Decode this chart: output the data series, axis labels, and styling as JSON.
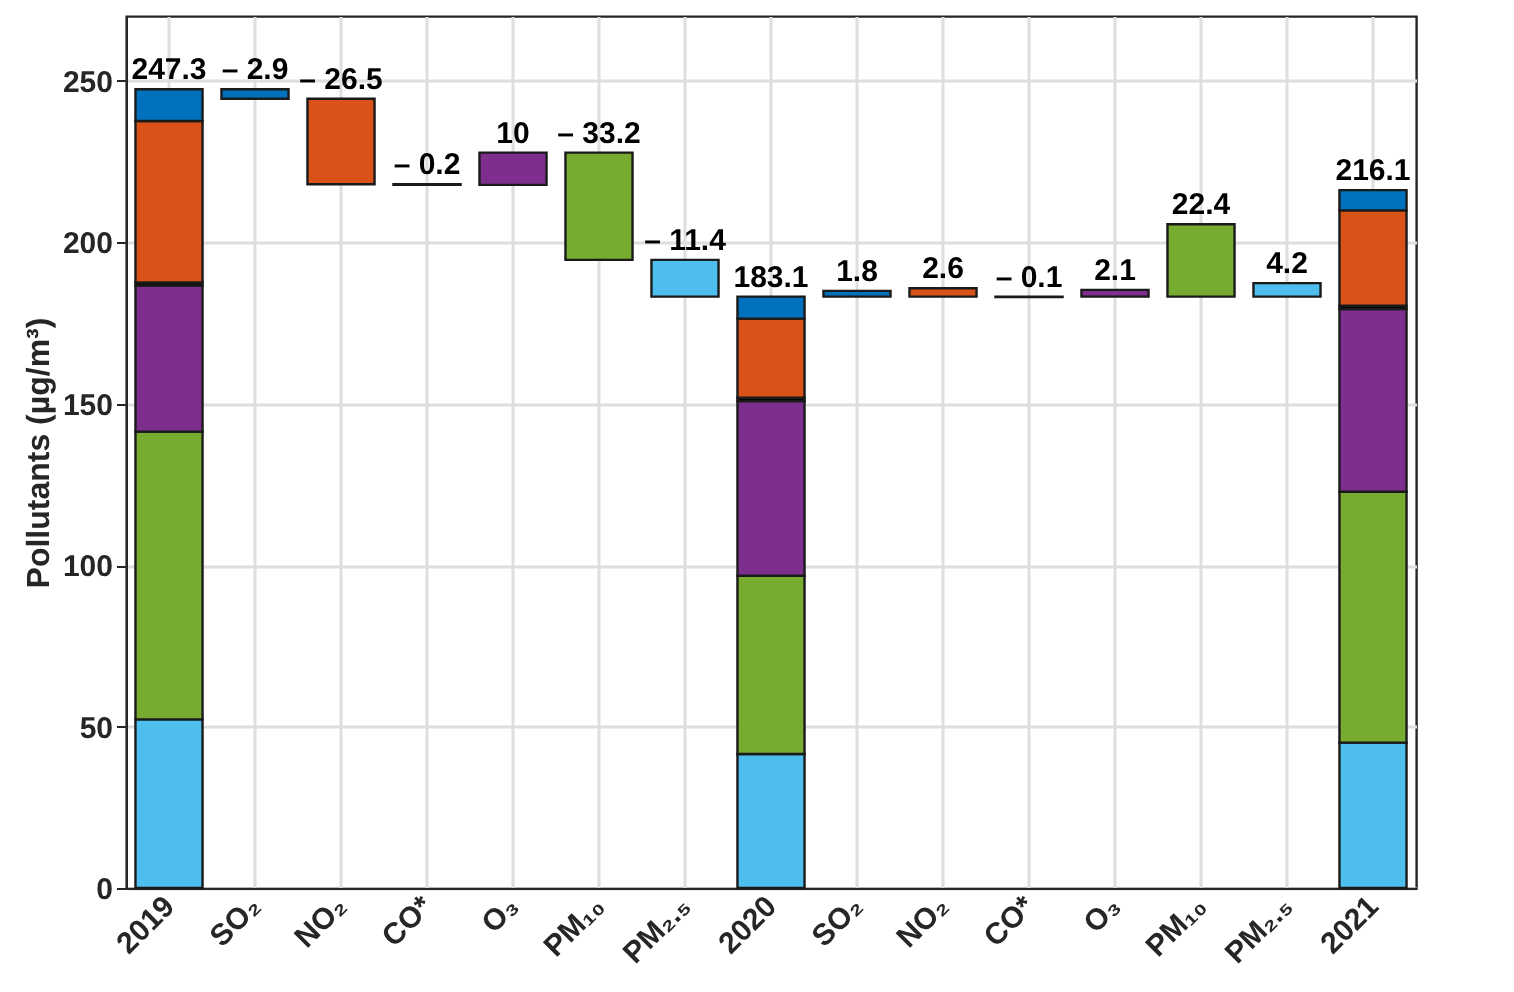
{
  "chart_data": {
    "type": "bar",
    "stacked": true,
    "ylabel": "Pollutants (µg/m³)",
    "categories": [
      "2019",
      "SO₂",
      "NO₂",
      "CO*",
      "O₃",
      "PM₁₀",
      "PM₂.₅",
      "2020",
      "SO₂",
      "NO₂",
      "CO*",
      "O₃",
      "PM₁₀",
      "PM₂.₅",
      "2021"
    ],
    "ylim": [
      0,
      270
    ],
    "yticks": [
      0,
      50,
      100,
      150,
      200,
      250
    ],
    "grid": true,
    "legend": false,
    "annotations": [
      {
        "text": "247.3",
        "x": "2019",
        "y": 247.3
      },
      {
        "text": "183.1",
        "x": "2020",
        "y": 183.1
      },
      {
        "text": "216.1",
        "x": "2021",
        "y": 216.1
      }
    ],
    "series": [
      {
        "color": "#4dbeee",
        "values": [
          52.2,
          null,
          null,
          null,
          null,
          null,
          -11.4,
          41.5,
          null,
          null,
          null,
          null,
          null,
          4.2,
          45.0
        ],
        "base": [
          null,
          null,
          null,
          null,
          null,
          null,
          194.5,
          null,
          null,
          null,
          null,
          null,
          null,
          183.1,
          null
        ],
        "value_labels": [
          null,
          null,
          null,
          null,
          null,
          null,
          "– 11.4",
          null,
          null,
          null,
          null,
          null,
          null,
          "4.2",
          null
        ]
      },
      {
        "color": "#77ac30",
        "values": [
          89.1,
          null,
          null,
          null,
          null,
          -33.2,
          null,
          55.2,
          null,
          null,
          null,
          null,
          22.4,
          null,
          77.7
        ],
        "base": [
          null,
          null,
          null,
          null,
          null,
          227.7,
          null,
          null,
          null,
          null,
          null,
          null,
          183.1,
          null,
          null
        ],
        "value_labels": [
          null,
          null,
          null,
          null,
          null,
          "– 33.2",
          null,
          null,
          null,
          null,
          null,
          null,
          "22.4",
          null,
          null
        ]
      },
      {
        "color": "#7e2f8e",
        "values": [
          45.2,
          null,
          null,
          null,
          10,
          null,
          null,
          54.1,
          null,
          null,
          null,
          2.1,
          null,
          null,
          56.6
        ],
        "base": [
          null,
          null,
          null,
          null,
          217.7,
          null,
          null,
          null,
          null,
          null,
          null,
          183.1,
          null,
          null,
          null
        ],
        "value_labels": [
          null,
          null,
          null,
          null,
          "10",
          null,
          null,
          null,
          null,
          null,
          null,
          "2.1",
          null,
          null,
          null
        ]
      },
      {
        "color": "#000000",
        "values": [
          1.0,
          null,
          null,
          -0.2,
          null,
          null,
          null,
          1.0,
          null,
          null,
          -0.1,
          null,
          null,
          null,
          1.0
        ],
        "base": [
          null,
          null,
          null,
          217.9,
          null,
          null,
          null,
          null,
          null,
          null,
          183.1,
          null,
          null,
          null,
          null
        ],
        "value_labels": [
          null,
          null,
          null,
          "– 0.2",
          null,
          null,
          null,
          null,
          null,
          null,
          "– 0.1",
          null,
          null,
          null,
          null
        ]
      },
      {
        "color": "#d95319",
        "values": [
          50.0,
          null,
          -26.5,
          null,
          null,
          null,
          null,
          24.5,
          null,
          2.6,
          null,
          null,
          null,
          null,
          29.5
        ],
        "base": [
          null,
          null,
          244.4,
          null,
          null,
          null,
          null,
          null,
          null,
          183.1,
          null,
          null,
          null,
          null,
          null
        ],
        "value_labels": [
          null,
          null,
          "– 26.5",
          null,
          null,
          null,
          null,
          null,
          null,
          "2.6",
          null,
          null,
          null,
          null,
          null
        ]
      },
      {
        "color": "#0072bd",
        "values": [
          9.8,
          -2.9,
          null,
          null,
          null,
          null,
          null,
          6.8,
          1.8,
          null,
          null,
          null,
          null,
          null,
          6.3
        ],
        "base": [
          null,
          247.3,
          null,
          null,
          null,
          null,
          null,
          null,
          183.1,
          null,
          null,
          null,
          null,
          null,
          null
        ],
        "value_labels": [
          null,
          "– 2.9",
          null,
          null,
          null,
          null,
          null,
          null,
          "1.8",
          null,
          null,
          null,
          null,
          null,
          null
        ]
      }
    ]
  }
}
